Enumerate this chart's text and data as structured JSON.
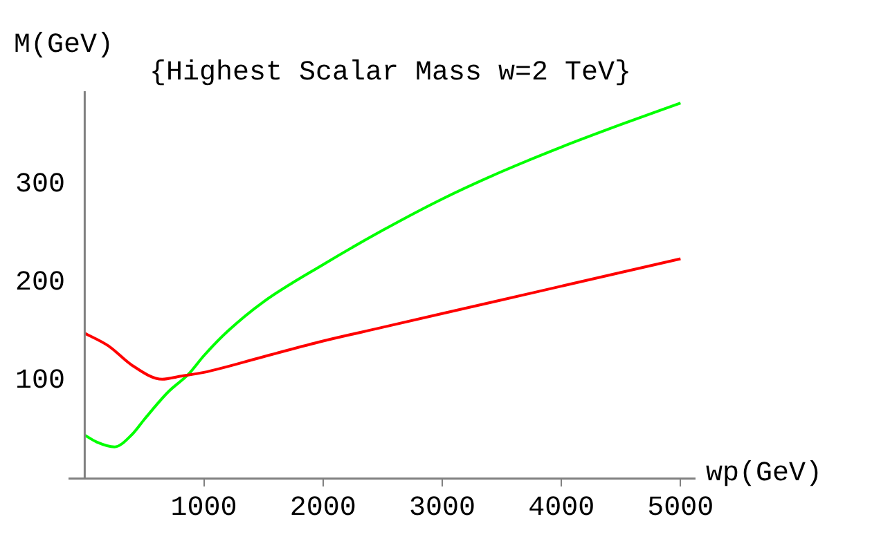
{
  "chart_data": {
    "type": "line",
    "title": "{Highest Scalar Mass w=2 TeV}",
    "xlabel": "wp(GeV)",
    "ylabel": "M(GeV)",
    "xlim": [
      -130,
      5120
    ],
    "ylim": [
      0,
      395
    ],
    "xticks": [
      1000,
      2000,
      3000,
      4000,
      5000
    ],
    "yticks": [
      100,
      200,
      300
    ],
    "grid": false,
    "legend": false,
    "marker": "none",
    "line_style": "solid",
    "series": [
      {
        "color": "#ff0000",
        "x": [
          0,
          200,
          400,
          650,
          800,
          1000,
          1500,
          2000,
          2500,
          3000,
          3500,
          4000,
          4500,
          5000
        ],
        "values": [
          148,
          135,
          115,
          101,
          104,
          108,
          124,
          140,
          154,
          168,
          182,
          196,
          210,
          224
        ]
      },
      {
        "color": "#00ff00",
        "x": [
          0,
          100,
          250,
          400,
          500,
          700,
          870,
          1000,
          1200,
          1500,
          2000,
          2500,
          3000,
          3500,
          4000,
          4500,
          5000
        ],
        "values": [
          44,
          37,
          32,
          45,
          60,
          88,
          106,
          125,
          150,
          180,
          218,
          253,
          285,
          313,
          338,
          361,
          383
        ]
      }
    ]
  }
}
